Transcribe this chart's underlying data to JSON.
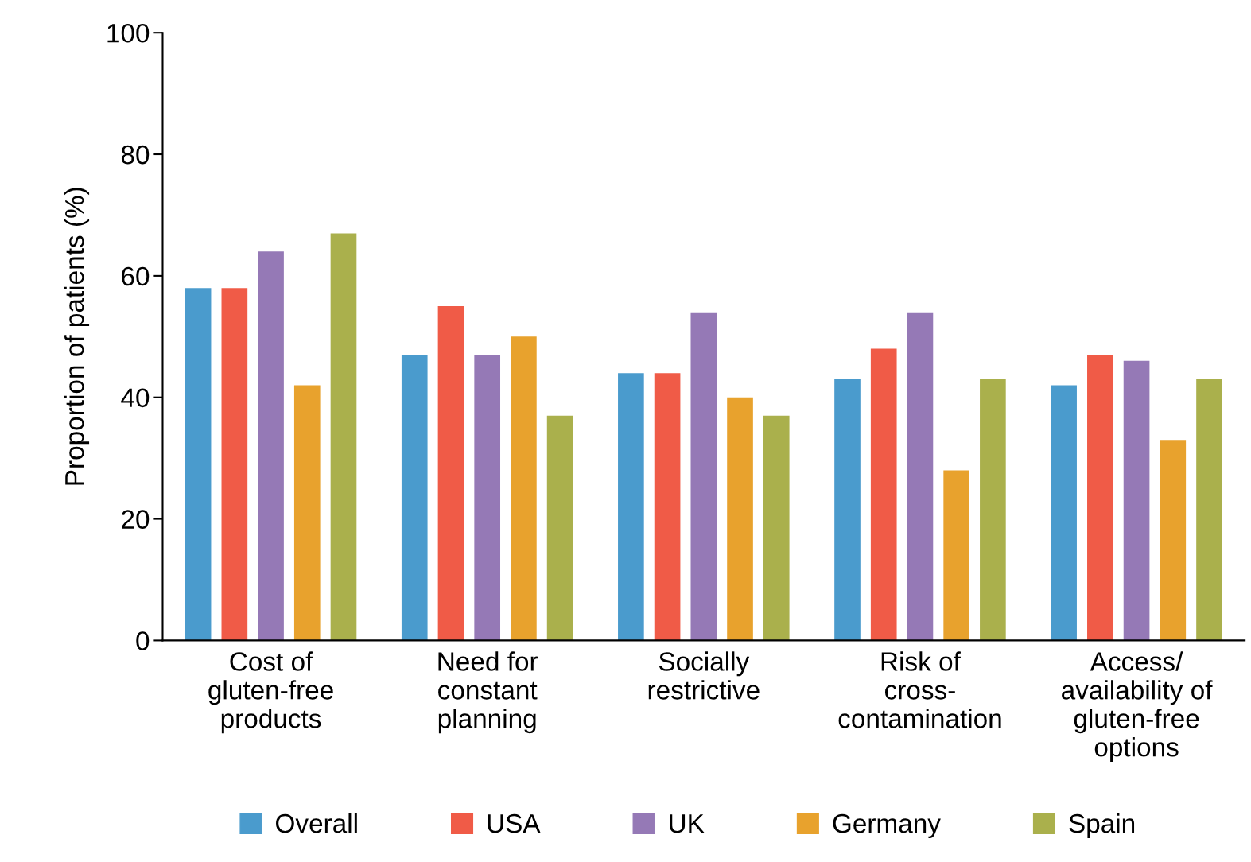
{
  "chart_data": {
    "type": "bar",
    "ylabel": "Proportion of patients (%)",
    "categories": [
      "Cost of\ngluten-free\nproducts",
      "Need for\nconstant\nplanning",
      "Socially\nrestrictive",
      "Risk of\ncross-\ncontamination",
      "Access/\navailability of\ngluten-free\noptions"
    ],
    "series": [
      {
        "name": "Overall",
        "color": "#4a9bcd",
        "values": [
          58,
          47,
          44,
          43,
          42
        ]
      },
      {
        "name": "USA",
        "color": "#f05b47",
        "values": [
          58,
          55,
          44,
          48,
          47
        ]
      },
      {
        "name": "UK",
        "color": "#9579b6",
        "values": [
          64,
          47,
          54,
          54,
          46
        ]
      },
      {
        "name": "Germany",
        "color": "#e8a22d",
        "values": [
          42,
          50,
          40,
          28,
          33
        ]
      },
      {
        "name": "Spain",
        "color": "#aab04c",
        "values": [
          67,
          37,
          37,
          43,
          43
        ]
      }
    ],
    "ylim": [
      0,
      100
    ],
    "yticks": [
      0,
      20,
      40,
      60,
      80,
      100
    ],
    "grid": false,
    "legend": "bottom"
  }
}
